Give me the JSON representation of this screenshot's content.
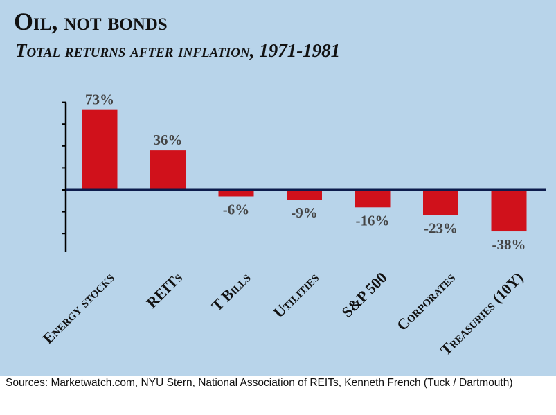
{
  "chart_data": {
    "type": "bar",
    "title": "Oil, not bonds",
    "subtitle": "Total returns after inflation, 1971-1981",
    "categories": [
      "Energy stocks",
      "REITs",
      "T Bills",
      "Utilities",
      "S&P 500",
      "Corporates",
      "Treasuries (10Y)"
    ],
    "values": [
      73,
      36,
      -6,
      -9,
      -16,
      -23,
      -38
    ],
    "value_labels": [
      "73%",
      "36%",
      "-6%",
      "-9%",
      "-16%",
      "-23%",
      "-38%"
    ],
    "xlabel": "",
    "ylabel": "",
    "ylim": [
      -57,
      80
    ],
    "grid": false,
    "bar_color": "#d0111b",
    "axis_color": "#0d1b4c",
    "background_color": "#b8d4ea"
  },
  "source": "Sources: Marketwatch.com, NYU Stern, National Association of REITs, Kenneth French (Tuck / Dartmouth)"
}
